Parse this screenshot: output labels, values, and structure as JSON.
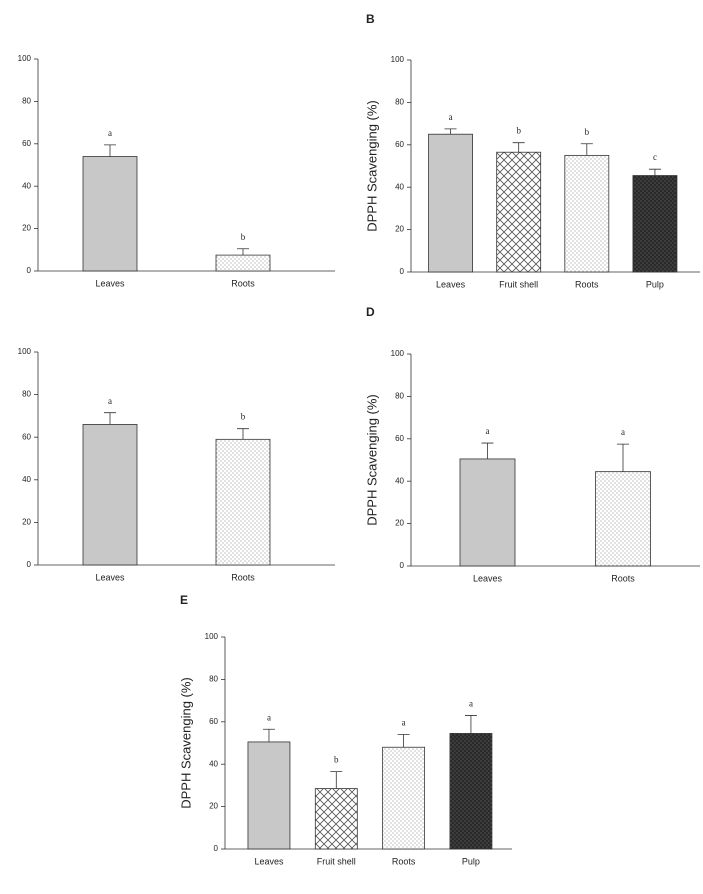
{
  "chart_data": [
    {
      "type": "bar",
      "categories": [
        "Leaves",
        "Roots"
      ],
      "values": [
        54,
        7.5
      ],
      "errors": [
        5.5,
        3
      ],
      "annotations": [
        "a",
        "b"
      ],
      "fills": [
        "#c8c8c8",
        "dots"
      ],
      "ylim": [
        0,
        100
      ],
      "yticks": [
        0,
        20,
        40,
        60,
        80,
        100
      ]
    },
    {
      "type": "bar",
      "title": "B",
      "ylabel": "DPPH Scavenging (%)",
      "categories": [
        "Leaves",
        "Fruit shell",
        "Roots",
        "Pulp"
      ],
      "values": [
        65,
        56.5,
        55,
        45.5
      ],
      "errors": [
        2.5,
        4.5,
        5.5,
        3
      ],
      "annotations": [
        "a",
        "b",
        "b",
        "c"
      ],
      "fills": [
        "#c8c8c8",
        "crosshatch",
        "dots",
        "dark-dots"
      ],
      "ylim": [
        0,
        100
      ],
      "yticks": [
        0,
        20,
        40,
        60,
        80,
        100
      ]
    },
    {
      "type": "bar",
      "categories": [
        "Leaves",
        "Roots"
      ],
      "values": [
        66,
        59
      ],
      "errors": [
        5.5,
        5
      ],
      "annotations": [
        "a",
        "b"
      ],
      "fills": [
        "#c8c8c8",
        "dots"
      ],
      "ylim": [
        0,
        100
      ],
      "yticks": [
        0,
        20,
        40,
        60,
        80,
        100
      ]
    },
    {
      "type": "bar",
      "title": "D",
      "ylabel": "DPPH Scavenging (%)",
      "categories": [
        "Leaves",
        "Roots"
      ],
      "values": [
        50.5,
        44.5
      ],
      "errors": [
        7.5,
        13
      ],
      "annotations": [
        "a",
        "a"
      ],
      "fills": [
        "#c8c8c8",
        "dots"
      ],
      "ylim": [
        0,
        100
      ],
      "yticks": [
        0,
        20,
        40,
        60,
        80,
        100
      ]
    },
    {
      "type": "bar",
      "title": "E",
      "ylabel": "DPPH Scavenging (%)",
      "categories": [
        "Leaves",
        "Fruit shell",
        "Roots",
        "Pulp"
      ],
      "values": [
        50.5,
        28.5,
        48,
        54.5
      ],
      "errors": [
        6,
        8,
        6,
        8.5
      ],
      "annotations": [
        "a",
        "b",
        "a",
        "a"
      ],
      "fills": [
        "#c8c8c8",
        "crosshatch",
        "dots",
        "dark-dots"
      ],
      "ylim": [
        0,
        100
      ],
      "yticks": [
        0,
        20,
        40,
        60,
        80,
        100
      ]
    }
  ]
}
